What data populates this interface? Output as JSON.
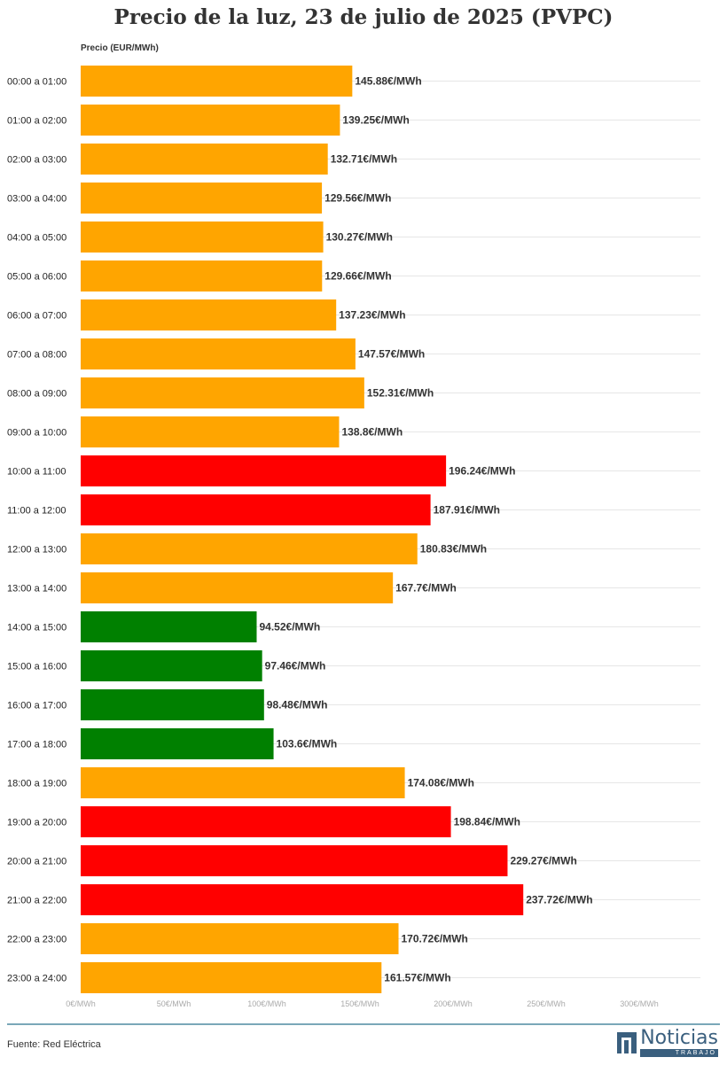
{
  "title": "Precio de la luz, 23 de julio de 2025 (PVPC)",
  "source": "Fuente: Red Eléctrica",
  "logo": {
    "name": "Noticias",
    "sub": "TRABAJO"
  },
  "colors": {
    "orange": "#FFA500",
    "red": "#FF0000",
    "green": "#008000"
  },
  "chart_data": {
    "type": "bar",
    "orientation": "horizontal",
    "title": "Precio de la luz, 23 de julio de 2025 (PVPC)",
    "axis_title": "Precio (EUR/MWh)",
    "xlim": [
      0,
      330
    ],
    "x_ticks": [
      0,
      50,
      100,
      150,
      200,
      250,
      300
    ],
    "x_tick_labels": [
      "0€/MWh",
      "50€/MWh",
      "100€/MWh",
      "150€/MWh",
      "200€/MWh",
      "250€/MWh",
      "300€/MWh"
    ],
    "grid": true,
    "categories": [
      "00:00 a 01:00",
      "01:00 a 02:00",
      "02:00 a 03:00",
      "03:00 a 04:00",
      "04:00 a 05:00",
      "05:00 a 06:00",
      "06:00 a 07:00",
      "07:00 a 08:00",
      "08:00 a 09:00",
      "09:00 a 10:00",
      "10:00 a 11:00",
      "11:00 a 12:00",
      "12:00 a 13:00",
      "13:00 a 14:00",
      "14:00 a 15:00",
      "15:00 a 16:00",
      "16:00 a 17:00",
      "17:00 a 18:00",
      "18:00 a 19:00",
      "19:00 a 20:00",
      "20:00 a 21:00",
      "21:00 a 22:00",
      "22:00 a 23:00",
      "23:00 a 24:00"
    ],
    "values": [
      145.88,
      139.25,
      132.71,
      129.56,
      130.27,
      129.66,
      137.23,
      147.57,
      152.31,
      138.8,
      196.24,
      187.91,
      180.83,
      167.7,
      94.52,
      97.46,
      98.48,
      103.6,
      174.08,
      198.84,
      229.27,
      237.72,
      170.72,
      161.57
    ],
    "data_labels": [
      "145.88€/MWh",
      "139.25€/MWh",
      "132.71€/MWh",
      "129.56€/MWh",
      "130.27€/MWh",
      "129.66€/MWh",
      "137.23€/MWh",
      "147.57€/MWh",
      "152.31€/MWh",
      "138.8€/MWh",
      "196.24€/MWh",
      "187.91€/MWh",
      "180.83€/MWh",
      "167.7€/MWh",
      "94.52€/MWh",
      "97.46€/MWh",
      "98.48€/MWh",
      "103.6€/MWh",
      "174.08€/MWh",
      "198.84€/MWh",
      "229.27€/MWh",
      "237.72€/MWh",
      "170.72€/MWh",
      "161.57€/MWh"
    ],
    "bar_colors": [
      "orange",
      "orange",
      "orange",
      "orange",
      "orange",
      "orange",
      "orange",
      "orange",
      "orange",
      "orange",
      "red",
      "red",
      "orange",
      "orange",
      "green",
      "green",
      "green",
      "green",
      "orange",
      "red",
      "red",
      "red",
      "orange",
      "orange"
    ]
  }
}
